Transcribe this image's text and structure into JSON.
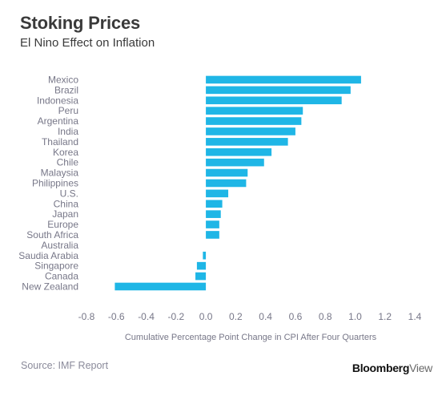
{
  "title": "Stoking Prices",
  "subtitle": "El Nino Effect on Inflation",
  "source": "Source: IMF Report",
  "brand": {
    "part1": "Bloomberg",
    "part2": "View"
  },
  "colors": {
    "bar": "#1fb6e6",
    "axis_text": "#777788",
    "title": "#3a3a3a"
  },
  "chart_data": {
    "type": "bar",
    "orientation": "horizontal",
    "categories": [
      "Mexico",
      "Brazil",
      "Indonesia",
      "Peru",
      "Argentina",
      "India",
      "Thailand",
      "Korea",
      "Chile",
      "Malaysia",
      "Philippines",
      "U.S.",
      "China",
      "Japan",
      "Europe",
      "South Africa",
      "Australia",
      "Saudia Arabia",
      "Singapore",
      "Canada",
      "New Zealand"
    ],
    "values": [
      1.04,
      0.97,
      0.91,
      0.65,
      0.64,
      0.6,
      0.55,
      0.44,
      0.39,
      0.28,
      0.27,
      0.15,
      0.11,
      0.1,
      0.09,
      0.09,
      0.0,
      -0.02,
      -0.06,
      -0.07,
      -0.61
    ],
    "xlabel": "Cumulative Percentage Point Change in CPI After Four Quarters",
    "ylabel": "",
    "xlim": [
      -0.8,
      1.4
    ],
    "xticks": [
      "-0.8",
      "-0.6",
      "-0.4",
      "-0.2",
      "0.0",
      "0.2",
      "0.4",
      "0.6",
      "0.8",
      "1.0",
      "1.2",
      "1.4"
    ],
    "grid": false,
    "legend": "none"
  }
}
